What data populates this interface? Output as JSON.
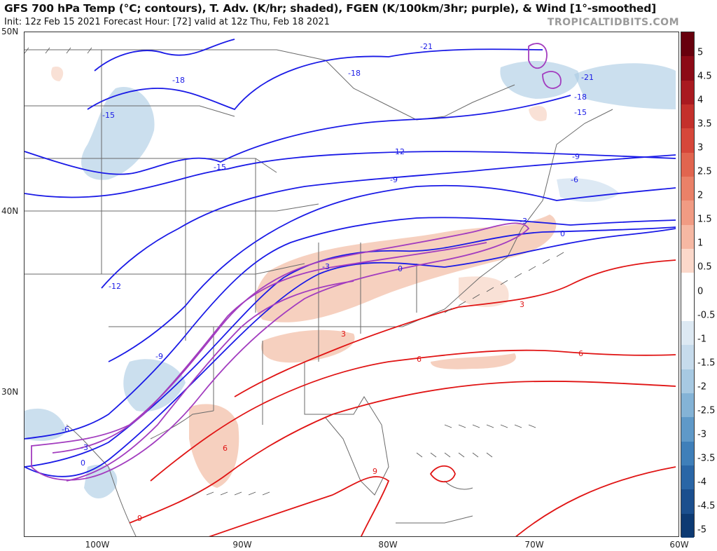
{
  "header": {
    "title": "GFS 700 hPa Temp (°C; contours), T. Adv. (K/hr; shaded), FGEN (K/100km/3hr; purple), & Wind [1°-smoothed]",
    "subtitle": "Init: 12z Feb 15 2021   Forecast Hour: [72]   valid at 12z Thu, Feb 18 2021",
    "brand": "TROPICALTIDBITS.COM"
  },
  "map": {
    "lat_labels": [
      "50N",
      "40N",
      "30N"
    ],
    "lon_labels": [
      "100W",
      "90W",
      "80W",
      "70W",
      "60W"
    ],
    "temperature_contour_labels": [
      "-21",
      "-21",
      "-18",
      "-18",
      "-18",
      "-15",
      "-15",
      "-15",
      "-12",
      "-12",
      "-9",
      "-9",
      "-9",
      "-6",
      "-6",
      "-3",
      "-3",
      "-3",
      "0",
      "0",
      "0",
      "3",
      "3",
      "6",
      "6",
      "6",
      "9",
      "9"
    ],
    "colors": {
      "cold_contour": "#1a1ae6",
      "warm_contour": "#e01414",
      "fgen": "#a23cbf",
      "warm_advection": "#eea98a",
      "cold_advection": "#a9c9e3",
      "boundaries": "#555555"
    }
  },
  "colorbar": {
    "labels": [
      "5",
      "4.5",
      "4",
      "3.5",
      "3",
      "2.5",
      "2",
      "1.5",
      "1",
      "0.5",
      "0",
      "-0.5",
      "-1",
      "-1.5",
      "-2",
      "-2.5",
      "-3",
      "-3.5",
      "-4",
      "-4.5",
      "-5"
    ],
    "colors": [
      "#67000d",
      "#8c0a16",
      "#a91a20",
      "#c4302b",
      "#d6473a",
      "#e1654f",
      "#ea8168",
      "#f19b83",
      "#f6b8a3",
      "#fbd8ca",
      "#ffffff",
      "#ffffff",
      "#dde9f3",
      "#c6dbec",
      "#a7c9e2",
      "#84b3d6",
      "#5f99c8",
      "#3f7fb9",
      "#2a66a6",
      "#1b4f8e",
      "#0d3a73"
    ]
  }
}
